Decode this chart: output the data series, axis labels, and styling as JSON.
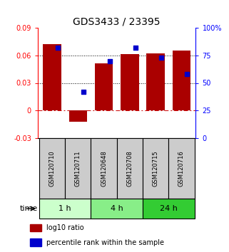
{
  "title": "GDS3433 / 23395",
  "samples": [
    "GSM120710",
    "GSM120711",
    "GSM120648",
    "GSM120708",
    "GSM120715",
    "GSM120716"
  ],
  "log10_ratio": [
    0.072,
    -0.012,
    0.051,
    0.061,
    0.062,
    0.065
  ],
  "percentile_rank": [
    82,
    42,
    70,
    82,
    73,
    58
  ],
  "ylim_left": [
    -0.03,
    0.09
  ],
  "ylim_right": [
    0,
    100
  ],
  "yticks_left": [
    -0.03,
    0,
    0.03,
    0.06,
    0.09
  ],
  "yticks_right": [
    0,
    25,
    50,
    75,
    100
  ],
  "ytick_labels_left": [
    "-0.03",
    "0",
    "0.03",
    "0.06",
    "0.09"
  ],
  "ytick_labels_right": [
    "0",
    "25",
    "50",
    "75",
    "100%"
  ],
  "hlines_black": [
    0.03,
    0.06
  ],
  "hline_red": 0,
  "bar_color": "#AA0000",
  "dot_color": "#0000CC",
  "bar_width": 0.7,
  "time_groups": [
    {
      "label": "1 h",
      "samples": [
        "GSM120710",
        "GSM120711"
      ],
      "color": "#CCFFCC"
    },
    {
      "label": "4 h",
      "samples": [
        "GSM120648",
        "GSM120708"
      ],
      "color": "#88EE88"
    },
    {
      "label": "24 h",
      "samples": [
        "GSM120715",
        "GSM120716"
      ],
      "color": "#33CC33"
    }
  ],
  "legend_red_label": "log10 ratio",
  "legend_blue_label": "percentile rank within the sample",
  "sample_box_color": "#CCCCCC",
  "title_fontsize": 10,
  "tick_fontsize": 7,
  "sample_fontsize": 6,
  "time_fontsize": 8,
  "legend_fontsize": 7
}
